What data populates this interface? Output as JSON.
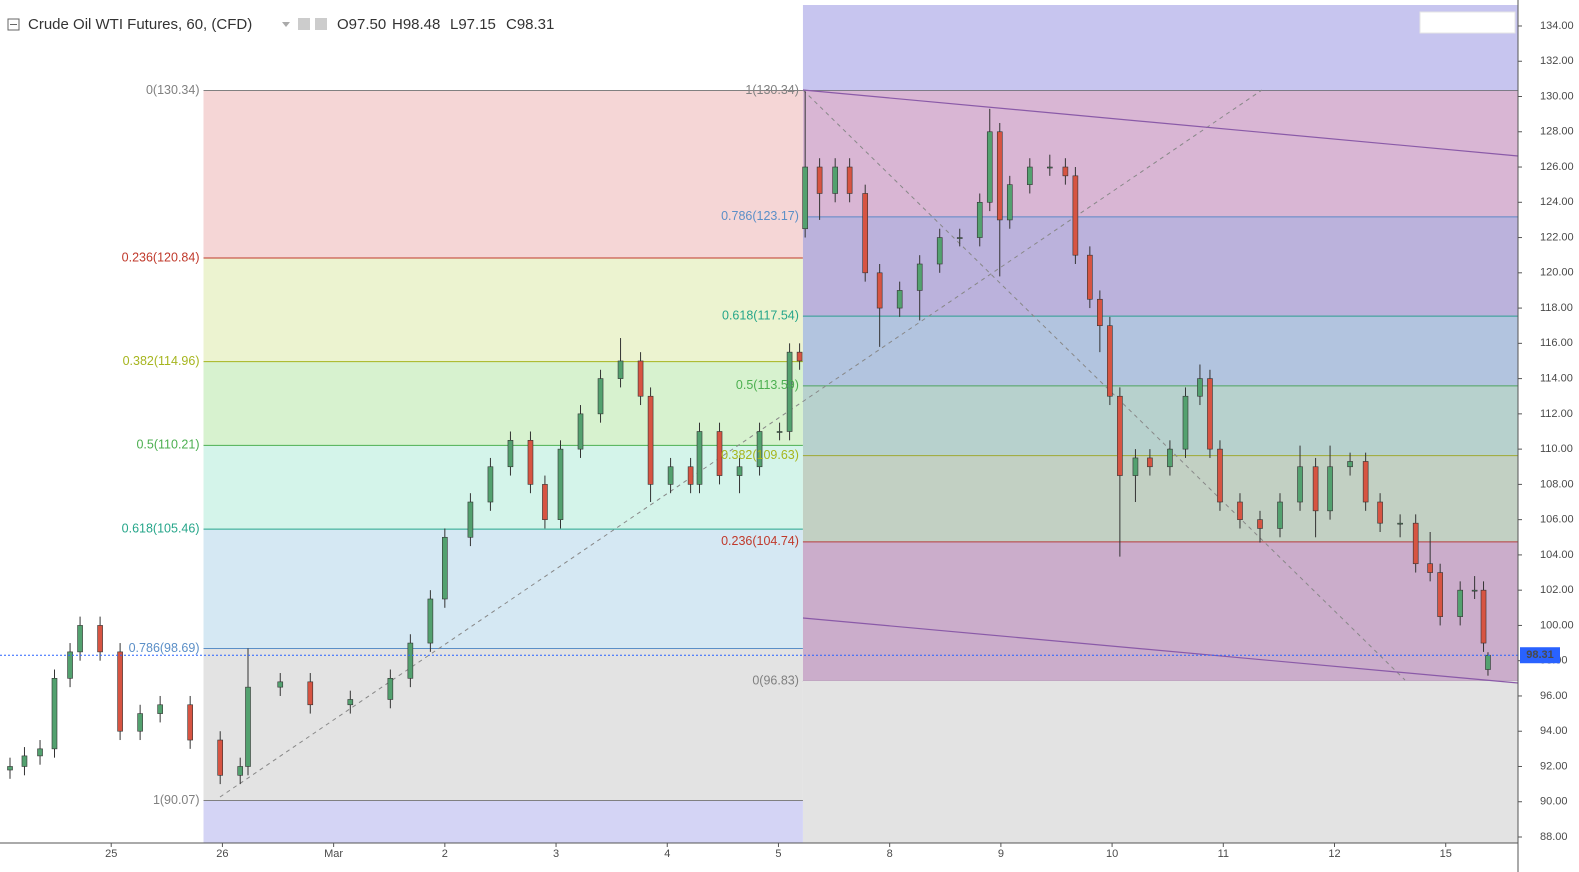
{
  "header": {
    "title": "Crude Oil WTI Futures, 60, (CFD)",
    "ohlc": [
      "O97.50",
      "H98.48",
      "L97.15",
      "C98.31"
    ]
  },
  "chart_data": {
    "type": "candlestick",
    "x": [
      0.09,
      0.22,
      0.36,
      0.49,
      0.63,
      0.72,
      0.9,
      1.08,
      1.26,
      1.44,
      1.71,
      1.98,
      2.16,
      2.23,
      2.52,
      2.79,
      3.15,
      3.51,
      3.69,
      3.87,
      4.0,
      4.23,
      4.41,
      4.59,
      4.77,
      4.9,
      5.04,
      5.22,
      5.4,
      5.58,
      5.76,
      5.85,
      6.03,
      6.21,
      6.29,
      6.47,
      6.65,
      6.83,
      7.01,
      7.1,
      7.19,
      7.24,
      7.37,
      7.51,
      7.64,
      7.78,
      7.91,
      8.09,
      8.27,
      8.45,
      8.63,
      8.81,
      8.9,
      8.99,
      9.08,
      9.26,
      9.44,
      9.58,
      9.67,
      9.8,
      9.89,
      9.98,
      10.07,
      10.21,
      10.34,
      10.52,
      10.66,
      10.79,
      10.88,
      10.97,
      11.15,
      11.33,
      11.51,
      11.69,
      11.83,
      11.96,
      12.14,
      12.28,
      12.41,
      12.59,
      12.73,
      12.86,
      12.95,
      13.13,
      13.26,
      13.34,
      13.38
    ],
    "open": [
      91.8,
      92.0,
      92.6,
      93.0,
      97.0,
      98.5,
      100.0,
      98.5,
      94.0,
      95.0,
      95.5,
      93.5,
      91.5,
      92.0,
      96.5,
      96.8,
      95.5,
      95.8,
      97.0,
      99.0,
      101.5,
      105.0,
      107.0,
      109.0,
      110.5,
      108.0,
      106.0,
      110.0,
      112.0,
      114.0,
      115.0,
      113.0,
      108.0,
      109.0,
      108.0,
      111.0,
      108.5,
      109.0,
      111.0,
      111.0,
      115.5,
      122.5,
      126.0,
      124.5,
      126.0,
      124.5,
      120.0,
      118.0,
      119.0,
      120.5,
      122.0,
      122.0,
      124.0,
      128.0,
      123.0,
      125.0,
      126.0,
      126.0,
      125.5,
      121.0,
      118.5,
      117.0,
      113.0,
      108.5,
      109.5,
      109.0,
      110.0,
      113.0,
      114.0,
      110.0,
      107.0,
      106.0,
      105.5,
      107.0,
      109.0,
      106.5,
      109.0,
      109.3,
      107.0,
      105.8,
      105.8,
      103.5,
      103.0,
      100.5,
      102.0,
      102.0,
      97.5
    ],
    "high": [
      92.5,
      93.1,
      93.5,
      97.5,
      99.0,
      100.5,
      100.5,
      99.0,
      95.5,
      96.0,
      96.0,
      94.0,
      92.5,
      98.7,
      97.3,
      97.3,
      96.3,
      97.5,
      99.5,
      102.0,
      105.5,
      107.5,
      109.5,
      111.0,
      111.0,
      108.5,
      110.5,
      112.5,
      114.5,
      116.3,
      115.5,
      113.5,
      109.5,
      109.5,
      111.5,
      111.5,
      109.5,
      111.5,
      111.5,
      116.0,
      116.0,
      130.3,
      126.5,
      126.5,
      126.5,
      125.0,
      120.5,
      119.5,
      121.0,
      122.5,
      122.5,
      124.5,
      129.3,
      128.5,
      125.5,
      126.5,
      126.7,
      126.5,
      126.0,
      121.5,
      119.0,
      117.5,
      113.5,
      110.0,
      110.0,
      110.5,
      113.5,
      114.8,
      114.5,
      110.5,
      107.5,
      106.5,
      107.5,
      110.2,
      109.5,
      110.2,
      109.8,
      109.8,
      107.5,
      106.3,
      106.3,
      105.3,
      103.5,
      102.5,
      102.8,
      102.5,
      98.48
    ],
    "low": [
      91.3,
      91.5,
      92.1,
      92.5,
      96.5,
      98.0,
      98.0,
      93.5,
      93.5,
      94.5,
      93.0,
      91.0,
      91.0,
      91.5,
      96.0,
      95.0,
      95.0,
      95.3,
      96.5,
      98.5,
      101.0,
      104.5,
      106.5,
      108.5,
      107.5,
      105.5,
      105.5,
      109.5,
      111.5,
      113.5,
      112.5,
      107.0,
      107.5,
      107.5,
      107.5,
      108.0,
      107.5,
      108.5,
      110.5,
      110.5,
      114.5,
      122.0,
      123.0,
      124.0,
      124.0,
      119.5,
      115.8,
      117.5,
      117.3,
      120.0,
      121.5,
      121.5,
      123.5,
      119.8,
      122.5,
      124.5,
      125.5,
      125.0,
      120.5,
      118.0,
      115.5,
      112.5,
      103.9,
      107.0,
      108.5,
      108.5,
      109.5,
      112.5,
      109.5,
      106.5,
      105.5,
      104.7,
      105.0,
      106.5,
      105.0,
      106.0,
      108.5,
      106.5,
      105.3,
      105.0,
      103.0,
      102.5,
      100.0,
      100.0,
      101.5,
      98.5,
      97.15
    ],
    "close": [
      92.0,
      92.6,
      93.0,
      97.0,
      98.5,
      100.0,
      98.5,
      94.0,
      95.0,
      95.5,
      93.5,
      91.5,
      92.0,
      96.5,
      96.8,
      95.5,
      95.8,
      97.0,
      99.0,
      101.5,
      105.0,
      107.0,
      109.0,
      110.5,
      108.0,
      106.0,
      110.0,
      112.0,
      114.0,
      115.0,
      113.0,
      108.0,
      109.0,
      108.0,
      111.0,
      108.5,
      109.0,
      111.0,
      111.0,
      115.5,
      115.0,
      126.0,
      124.5,
      126.0,
      124.5,
      120.0,
      118.0,
      119.0,
      120.5,
      122.0,
      122.0,
      124.0,
      128.0,
      123.0,
      125.0,
      126.0,
      126.0,
      125.5,
      121.0,
      118.5,
      117.0,
      113.0,
      108.5,
      109.5,
      109.0,
      110.0,
      113.0,
      114.0,
      110.0,
      107.0,
      106.0,
      105.5,
      107.0,
      109.0,
      106.5,
      109.0,
      109.3,
      107.0,
      105.8,
      105.8,
      103.5,
      103.0,
      100.5,
      102.0,
      102.0,
      99.0,
      98.31
    ],
    "up_color": "#53a16f",
    "down_color": "#d75442",
    "last_price_color": "#2962ff",
    "xlim": [
      0,
      13.65
    ],
    "ylim": [
      87.66,
      135.19
    ],
    "xticks": [
      {
        "value": 1,
        "label": "25"
      },
      {
        "value": 2,
        "label": "26"
      },
      {
        "value": 3,
        "label": "Mar"
      },
      {
        "value": 4,
        "label": "2"
      },
      {
        "value": 5,
        "label": "3"
      },
      {
        "value": 6,
        "label": "4"
      },
      {
        "value": 7,
        "label": "5"
      },
      {
        "value": 8,
        "label": "8"
      },
      {
        "value": 9,
        "label": "9"
      },
      {
        "value": 10,
        "label": "10"
      },
      {
        "value": 11,
        "label": "11"
      },
      {
        "value": 12,
        "label": "12"
      },
      {
        "value": 13,
        "label": "15"
      }
    ],
    "yticks": [
      {
        "value": 88,
        "label": "88.00"
      },
      {
        "value": 90,
        "label": "90.00"
      },
      {
        "value": 92,
        "label": "92.00"
      },
      {
        "value": 94,
        "label": "94.00"
      },
      {
        "value": 96,
        "label": "96.00"
      },
      {
        "value": 98,
        "label": "98.00"
      },
      {
        "value": 100,
        "label": "100.00"
      },
      {
        "value": 102,
        "label": "102.00"
      },
      {
        "value": 104,
        "label": "104.00"
      },
      {
        "value": 106,
        "label": "106.00"
      },
      {
        "value": 108,
        "label": "108.00"
      },
      {
        "value": 110,
        "label": "110.00"
      },
      {
        "value": 112,
        "label": "112.00"
      },
      {
        "value": 114,
        "label": "114.00"
      },
      {
        "value": 116,
        "label": "116.00"
      },
      {
        "value": 118,
        "label": "118.00"
      },
      {
        "value": 120,
        "label": "120.00"
      },
      {
        "value": 122,
        "label": "122.00"
      },
      {
        "value": 124,
        "label": "124.00"
      },
      {
        "value": 126,
        "label": "126.00"
      },
      {
        "value": 128,
        "label": "128.00"
      },
      {
        "value": 130,
        "label": "130.00"
      },
      {
        "value": 132,
        "label": "132.00"
      },
      {
        "value": 134,
        "label": "134.00"
      }
    ],
    "fibonacci": [
      {
        "xrange": [
          1.83,
          7.22
        ],
        "extension": "below",
        "extension_color": "#d4d4f5",
        "levels": [
          {
            "value": 130.34,
            "label": "0(130.34)",
            "color": "#808080"
          },
          {
            "value": 120.84,
            "label": "0.236(120.84)",
            "color": "#c0392b"
          },
          {
            "value": 114.96,
            "label": "0.382(114.96)",
            "color": "#a6b51e"
          },
          {
            "value": 110.21,
            "label": "0.5(110.21)",
            "color": "#4caf50"
          },
          {
            "value": 105.46,
            "label": "0.618(105.46)",
            "color": "#26a68a"
          },
          {
            "value": 98.69,
            "label": "0.786(98.69)",
            "color": "#5b8fc7"
          },
          {
            "value": 90.07,
            "label": "1(90.07)",
            "color": "#808080"
          }
        ],
        "band_colors": [
          "#f5d6d6",
          "#ecf3d0",
          "#d7f2cf",
          "#d4f4ea",
          "#d5e8f3",
          "#e3e3e3"
        ]
      },
      {
        "xrange": [
          7.22,
          13.65
        ],
        "extension": "above",
        "extension_color": "#d4d4f5",
        "levels": [
          {
            "value": 130.34,
            "label": "1(130.34)",
            "color": "#808080"
          },
          {
            "value": 123.17,
            "label": "0.786(123.17)",
            "color": "#5b8fc7"
          },
          {
            "value": 117.54,
            "label": "0.618(117.54)",
            "color": "#26a68a"
          },
          {
            "value": 113.59,
            "label": "0.5(113.59)",
            "color": "#4caf50"
          },
          {
            "value": 109.63,
            "label": "0.382(109.63)",
            "color": "#a6b51e"
          },
          {
            "value": 104.74,
            "label": "0.236(104.74)",
            "color": "#c0392b"
          },
          {
            "value": 96.83,
            "label": "0(96.83)",
            "color": "#808080"
          }
        ],
        "band_colors": [
          "#e9c3d6",
          "#c6bfe0",
          "#bcd3e3",
          "#c2e2cf",
          "#cfe1c3",
          "#d9b9cc"
        ]
      }
    ]
  }
}
